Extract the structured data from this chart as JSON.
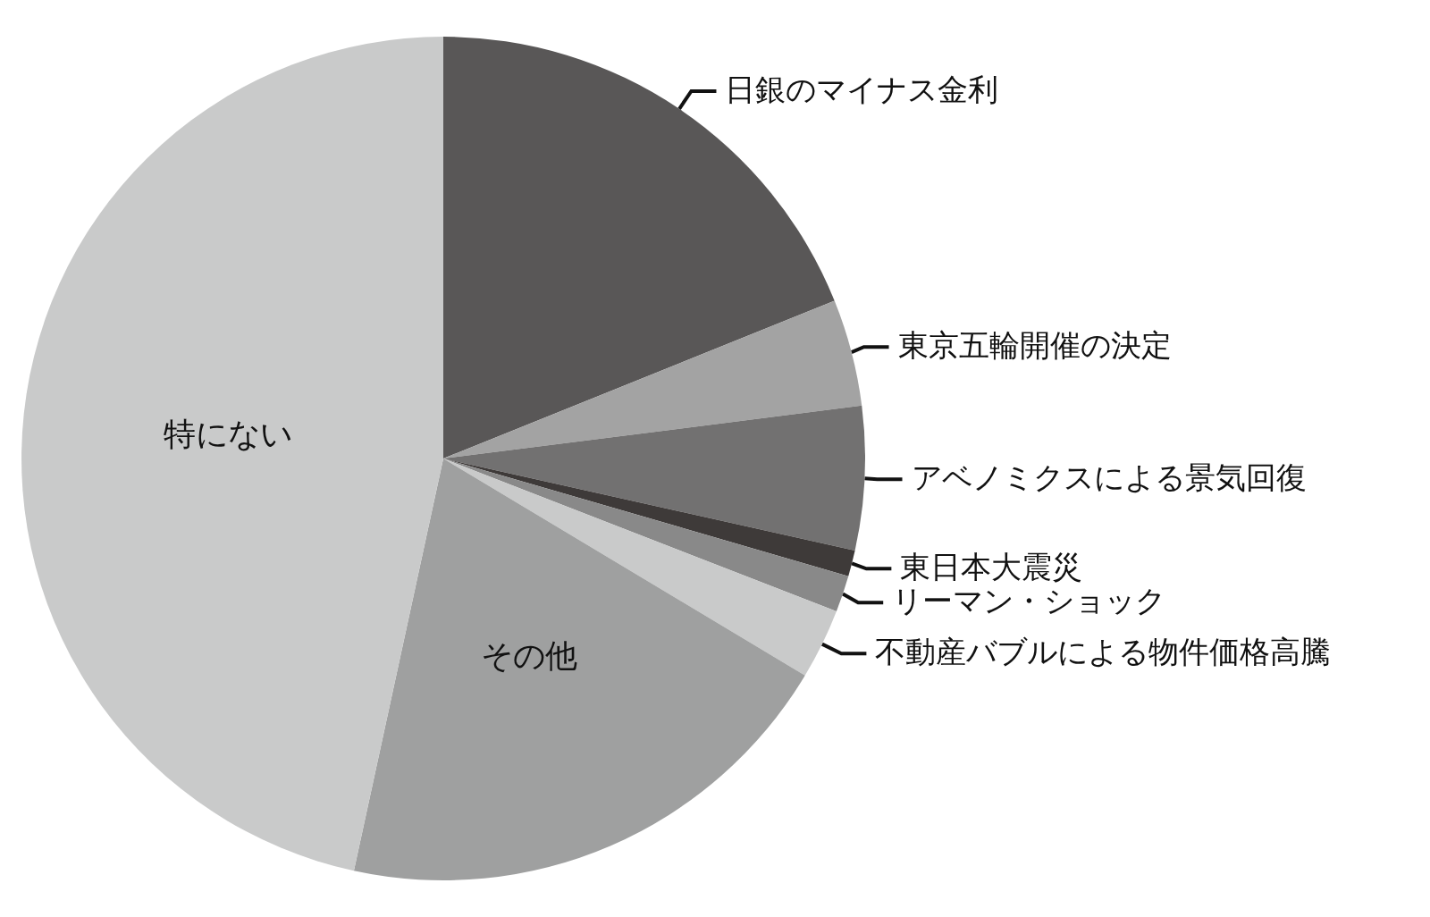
{
  "chart_data": {
    "type": "pie",
    "categories": [
      "日銀のマイナス金利",
      "東京五輪開催の決定",
      "アベノミクスによる景気回復",
      "東日本大震災",
      "リーマン・ショック",
      "不動産バブルによる物件価格高騰",
      "その他",
      "特にない"
    ],
    "values": [
      18.9,
      4.1,
      5.5,
      1.0,
      1.4,
      2.7,
      19.8,
      46.6
    ],
    "colors": [
      "#595757",
      "#a3a3a3",
      "#727171",
      "#3e3a39",
      "#898989",
      "#c9caca",
      "#9fa0a0",
      "#c9caca"
    ],
    "legend": false
  }
}
